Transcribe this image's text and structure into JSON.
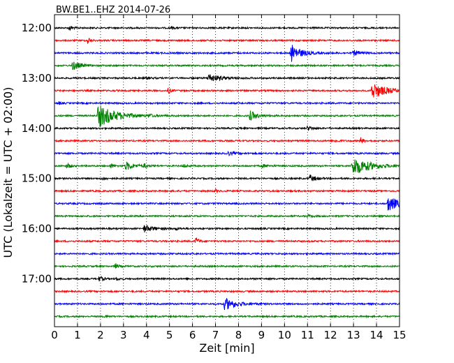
{
  "chart_data": {
    "type": "line",
    "title": "BW.BE1..EHZ 2014-07-26",
    "xlabel": "Zeit  [min]",
    "ylabel": "UTC (Lokalzeit = UTC + 02:00)",
    "xlim": [
      0,
      15
    ],
    "x_ticks": [
      "0",
      "1",
      "2",
      "3",
      "4",
      "5",
      "6",
      "7",
      "8",
      "9",
      "10",
      "11",
      "12",
      "13",
      "14",
      "15"
    ],
    "y_ticks": [
      "12:00",
      "13:00",
      "14:00",
      "15:00",
      "16:00",
      "17:00"
    ],
    "grid": "vertical dotted",
    "colors": [
      "#000000",
      "#ff0000",
      "#0000ff",
      "#008000"
    ],
    "traces": [
      {
        "start": "12:00",
        "color": "black",
        "events": [
          {
            "x": 0.65,
            "amp": 4,
            "dur": 0.2
          },
          {
            "x": 5.1,
            "amp": 2,
            "dur": 0.2
          }
        ]
      },
      {
        "start": "12:15",
        "color": "red",
        "events": [
          {
            "x": 1.45,
            "amp": 6,
            "dur": 0.15
          }
        ]
      },
      {
        "start": "12:30",
        "color": "blue",
        "events": [
          {
            "x": 10.3,
            "amp": 13,
            "dur": 0.8
          },
          {
            "x": 13.0,
            "amp": 4,
            "dur": 0.5
          }
        ]
      },
      {
        "start": "12:45",
        "color": "green",
        "events": [
          {
            "x": 0.8,
            "amp": 7,
            "dur": 0.6
          }
        ]
      },
      {
        "start": "13:00",
        "color": "black",
        "events": [
          {
            "x": 6.7,
            "amp": 6,
            "dur": 1.0
          },
          {
            "x": 4.0,
            "amp": 2,
            "dur": 0.3
          }
        ]
      },
      {
        "start": "13:15",
        "color": "red",
        "events": [
          {
            "x": 4.95,
            "amp": 4,
            "dur": 0.2
          },
          {
            "x": 13.8,
            "amp": 12,
            "dur": 1.2
          }
        ]
      },
      {
        "start": "13:30",
        "color": "blue",
        "events": [
          {
            "x": 0.2,
            "amp": 2,
            "dur": 0.2
          }
        ]
      },
      {
        "start": "13:45",
        "color": "green",
        "events": [
          {
            "x": 1.9,
            "amp": 17,
            "dur": 1.5
          },
          {
            "x": 8.5,
            "amp": 7,
            "dur": 0.6
          },
          {
            "x": 4.1,
            "amp": 2,
            "dur": 0.3
          }
        ]
      },
      {
        "start": "14:00",
        "color": "black",
        "events": [
          {
            "x": 11.0,
            "amp": 3,
            "dur": 0.4
          }
        ]
      },
      {
        "start": "14:15",
        "color": "red",
        "events": [
          {
            "x": 12.2,
            "amp": 2,
            "dur": 0.3
          },
          {
            "x": 13.3,
            "amp": 5,
            "dur": 0.2
          }
        ]
      },
      {
        "start": "14:30",
        "color": "blue",
        "events": [
          {
            "x": 7.5,
            "amp": 3,
            "dur": 0.5
          }
        ]
      },
      {
        "start": "14:45",
        "color": "green",
        "events": [
          {
            "x": 0.55,
            "amp": 4,
            "dur": 0.3
          },
          {
            "x": 2.45,
            "amp": 4,
            "dur": 0.2
          },
          {
            "x": 3.1,
            "amp": 6,
            "dur": 0.7
          },
          {
            "x": 3.9,
            "amp": 3,
            "dur": 0.2
          },
          {
            "x": 5.6,
            "amp": 2,
            "dur": 0.4
          },
          {
            "x": 9.0,
            "amp": 2,
            "dur": 0.6
          },
          {
            "x": 12.95,
            "amp": 14,
            "dur": 1.5
          }
        ]
      },
      {
        "start": "15:00",
        "color": "black",
        "events": [
          {
            "x": 2.1,
            "amp": 2,
            "dur": 0.3
          },
          {
            "x": 11.1,
            "amp": 5,
            "dur": 0.5
          }
        ]
      },
      {
        "start": "15:15",
        "color": "red",
        "events": [
          {
            "x": 7.0,
            "amp": 2,
            "dur": 0.2
          }
        ]
      },
      {
        "start": "15:30",
        "color": "blue",
        "events": [
          {
            "x": 14.5,
            "amp": 11,
            "dur": 1.0
          }
        ]
      },
      {
        "start": "15:45",
        "color": "green",
        "events": [
          {
            "x": 11.0,
            "amp": 2,
            "dur": 0.3
          }
        ]
      },
      {
        "start": "16:00",
        "color": "black",
        "events": [
          {
            "x": 3.9,
            "amp": 5,
            "dur": 0.8
          },
          {
            "x": 5.3,
            "amp": 2,
            "dur": 0.2
          }
        ]
      },
      {
        "start": "16:15",
        "color": "red",
        "events": [
          {
            "x": 6.15,
            "amp": 6,
            "dur": 0.2
          }
        ]
      },
      {
        "start": "16:30",
        "color": "blue",
        "events": []
      },
      {
        "start": "16:45",
        "color": "green",
        "events": [
          {
            "x": 2.65,
            "amp": 4,
            "dur": 0.2
          }
        ]
      },
      {
        "start": "17:00",
        "color": "black",
        "events": [
          {
            "x": 1.95,
            "amp": 4,
            "dur": 0.3
          },
          {
            "x": 2.7,
            "amp": 2,
            "dur": 0.2
          }
        ]
      },
      {
        "start": "17:15",
        "color": "red",
        "events": []
      },
      {
        "start": "17:30",
        "color": "blue",
        "events": [
          {
            "x": 7.4,
            "amp": 9,
            "dur": 1.0
          }
        ]
      },
      {
        "start": "17:45",
        "color": "green",
        "events": [
          {
            "x": 2.2,
            "amp": 2,
            "dur": 0.2
          }
        ]
      }
    ]
  }
}
